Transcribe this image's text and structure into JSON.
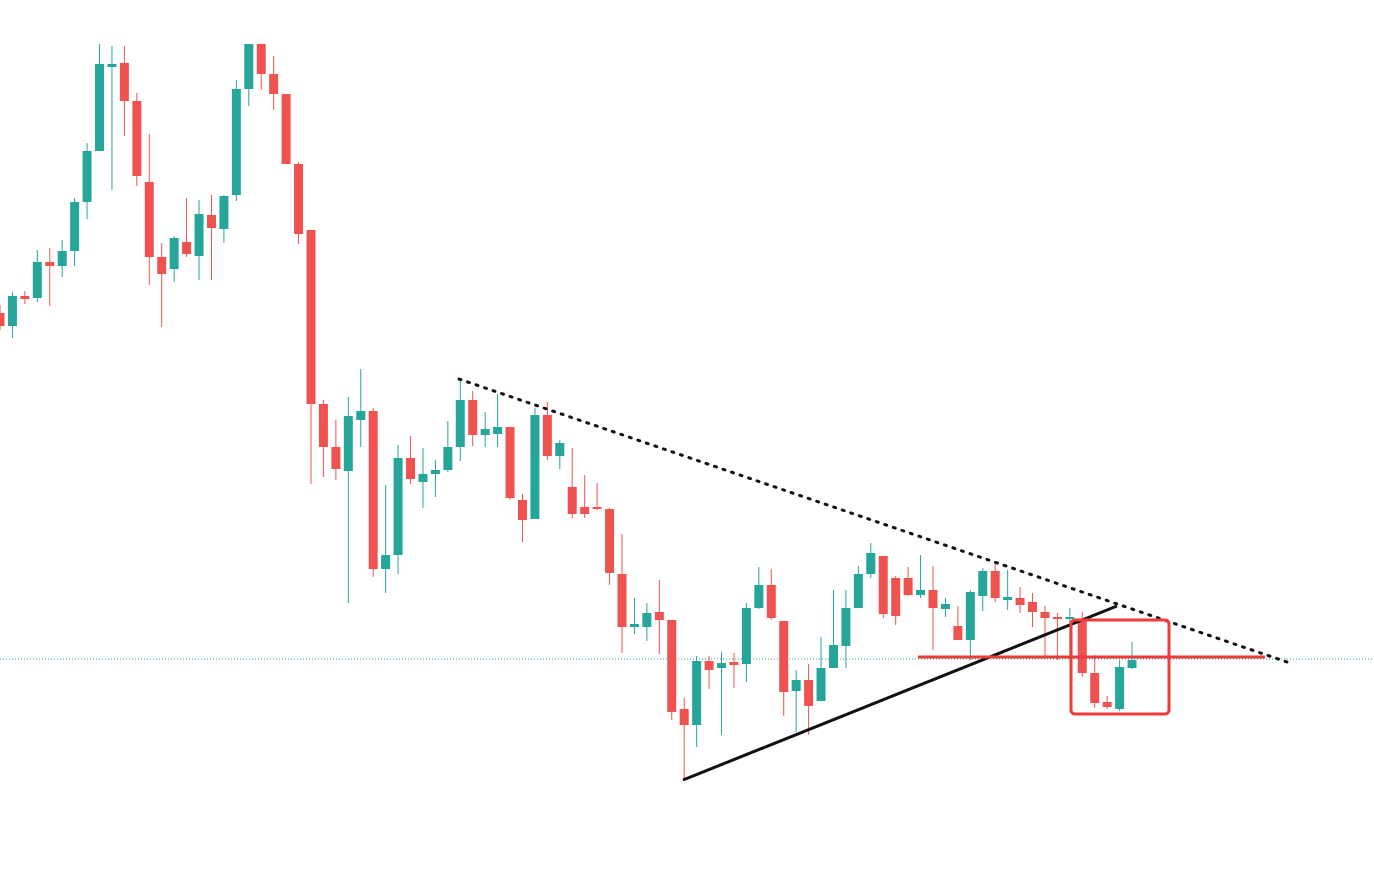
{
  "chart_data": {
    "type": "candlestick",
    "up_color": "#26a69a",
    "down_color": "#ef5350",
    "ylim": [
      0,
      894
    ],
    "open": [
      581,
      568,
      598,
      596,
      632,
      628,
      643,
      692,
      743,
      827,
      831,
      793,
      712,
      637,
      625,
      652,
      638,
      679,
      665,
      699,
      805,
      850,
      820,
      800,
      730,
      664,
      490,
      447,
      423,
      474,
      483,
      325,
      339,
      436,
      412,
      420,
      424,
      447,
      494,
      459,
      460,
      467,
      394,
      375,
      479,
      438,
      407,
      387,
      387,
      385,
      320,
      267,
      267,
      282,
      274,
      185,
      169,
      233,
      226,
      232,
      230,
      286,
      309,
      273,
      203,
      214,
      193,
      226,
      248,
      286,
      320,
      338,
      316,
      316,
      299,
      304,
      285,
      268,
      254,
      298,
      323,
      294,
      296,
      292,
      282,
      277,
      275,
      275,
      221,
      192,
      185,
      226
    ],
    "high": [
      589,
      602,
      603,
      644,
      646,
      654,
      696,
      751,
      850,
      848,
      848,
      801,
      760,
      651,
      658,
      696,
      694,
      699,
      699,
      814,
      850,
      850,
      838,
      800,
      732,
      664,
      494,
      474,
      497,
      525,
      486,
      409,
      449,
      458,
      446,
      434,
      473,
      514,
      503,
      482,
      500,
      467,
      400,
      486,
      492,
      454,
      446,
      419,
      411,
      386,
      360,
      296,
      291,
      314,
      274,
      196,
      238,
      238,
      242,
      241,
      291,
      327,
      325,
      273,
      224,
      230,
      257,
      304,
      304,
      328,
      351,
      338,
      318,
      327,
      339,
      328,
      296,
      288,
      304,
      326,
      332,
      324,
      307,
      301,
      288,
      281,
      286,
      282,
      239,
      198,
      234,
      252
    ],
    "low": [
      564,
      556,
      590,
      592,
      588,
      617,
      628,
      675,
      743,
      704,
      758,
      708,
      609,
      567,
      612,
      637,
      614,
      614,
      651,
      693,
      788,
      804,
      784,
      730,
      650,
      410,
      417,
      414,
      291,
      447,
      317,
      301,
      320,
      410,
      386,
      397,
      422,
      433,
      448,
      447,
      447,
      394,
      352,
      375,
      434,
      425,
      376,
      376,
      384,
      309,
      241,
      260,
      253,
      240,
      174,
      115,
      147,
      205,
      159,
      206,
      212,
      285,
      274,
      178,
      162,
      159,
      193,
      226,
      226,
      286,
      316,
      276,
      269,
      298,
      296,
      244,
      277,
      254,
      234,
      283,
      292,
      284,
      281,
      267,
      238,
      234,
      234,
      217,
      186,
      185,
      183,
      225
    ],
    "close": [
      568,
      598,
      595,
      632,
      628,
      643,
      692,
      743,
      830,
      830,
      793,
      718,
      637,
      620,
      656,
      640,
      680,
      666,
      698,
      805,
      850,
      820,
      800,
      730,
      660,
      490,
      447,
      425,
      478,
      483,
      325,
      339,
      436,
      415,
      420,
      424,
      447,
      494,
      459,
      465,
      467,
      396,
      374,
      479,
      438,
      451,
      380,
      380,
      385,
      321,
      267,
      270,
      281,
      274,
      182,
      169,
      233,
      224,
      231,
      229,
      286,
      309,
      276,
      202,
      214,
      188,
      226,
      249,
      286,
      320,
      341,
      280,
      278,
      299,
      304,
      286,
      290,
      254,
      302,
      323,
      296,
      297,
      289,
      282,
      276,
      275,
      277,
      221,
      191,
      187,
      227,
      234
    ]
  }
}
